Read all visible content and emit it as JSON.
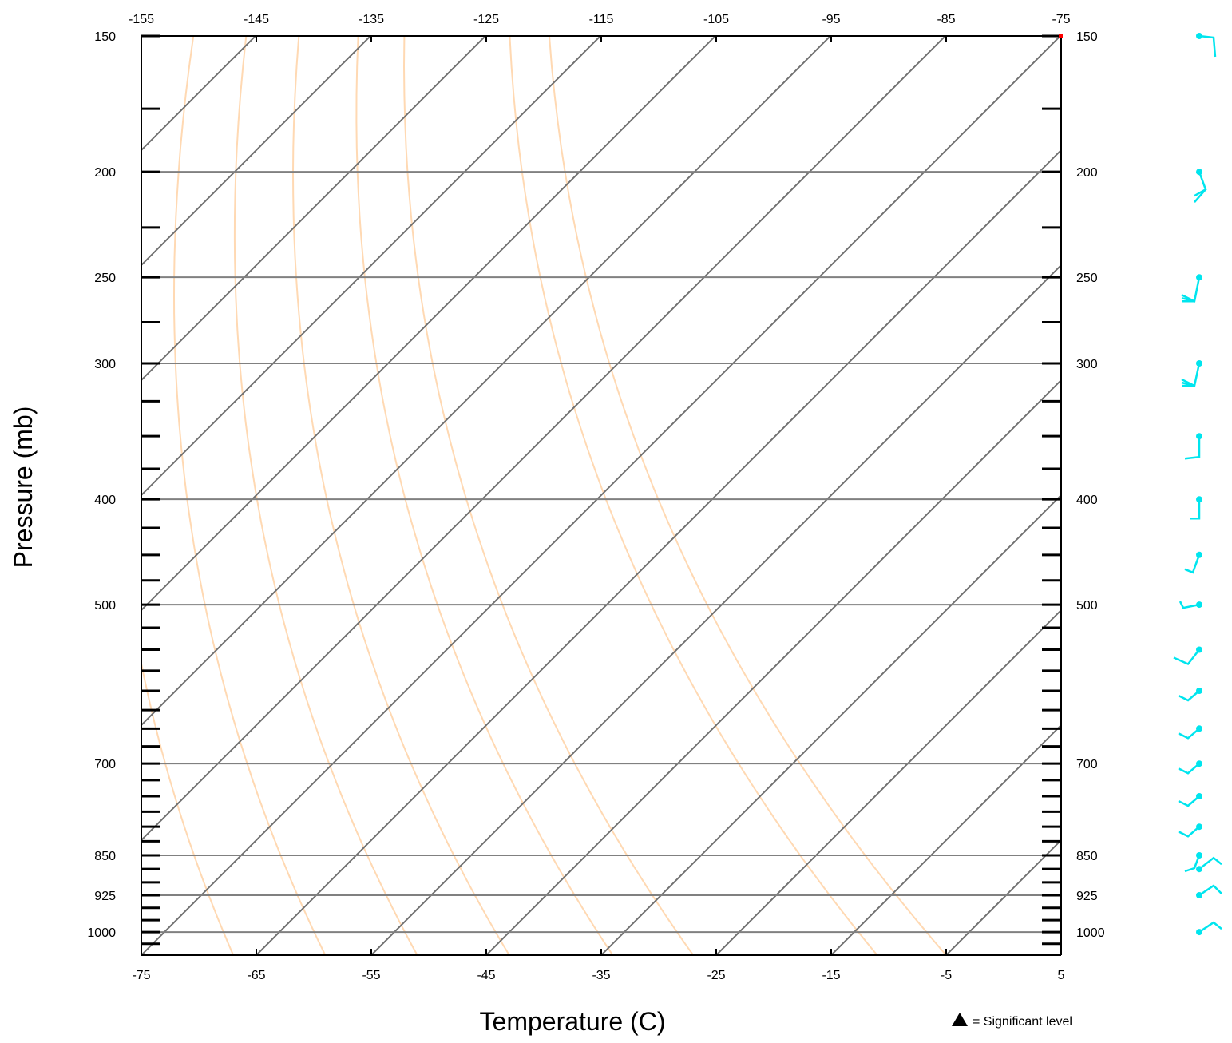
{
  "chart_data": {
    "type": "skew-t log-p diagram",
    "xlabel": "Temperature (C)",
    "ylabel": "Pressure (mb)",
    "bottom_ticks": [
      "-75",
      "-65",
      "-55",
      "-45",
      "-35",
      "-25",
      "-15",
      "-5",
      "5"
    ],
    "bottom_tick_values": [
      -75,
      -65,
      -55,
      -45,
      -35,
      -25,
      -15,
      -5,
      5
    ],
    "top_ticks": [
      "-155",
      "-145",
      "-135",
      "-125",
      "-115",
      "-105",
      "-95",
      "-85",
      "-75"
    ],
    "top_tick_values": [
      -155,
      -145,
      -135,
      -125,
      -115,
      -105,
      -95,
      -85,
      -75
    ],
    "pressure_labels": [
      "150",
      "200",
      "250",
      "300",
      "400",
      "500",
      "700",
      "850",
      "925",
      "1000"
    ],
    "pressure_levels": [
      150,
      200,
      250,
      300,
      400,
      500,
      700,
      850,
      925,
      1000
    ],
    "pressure_range": [
      150,
      1050
    ],
    "temperature_range_bottom": [
      -75,
      5
    ],
    "isotherms_c": [
      -155,
      -145,
      -135,
      -125,
      -115,
      -105,
      -95,
      -85,
      -75,
      -65,
      -55,
      -45,
      -35,
      -25,
      -15,
      -5,
      5
    ],
    "dry_adiabats_c": [
      -75,
      -67,
      -59,
      -51,
      -43,
      -34,
      -27,
      -11,
      -5
    ],
    "minor_pressure_ticks": [
      175,
      225,
      275,
      325,
      350,
      375,
      425,
      450,
      475,
      525,
      550,
      575,
      600,
      625,
      650,
      675,
      725,
      750,
      775,
      800,
      825,
      875,
      900,
      950,
      975,
      1025
    ],
    "wind_barb_levels": [
      150,
      200,
      250,
      300,
      350,
      400,
      450,
      500,
      550,
      600,
      650,
      700,
      750,
      800,
      850,
      875,
      925,
      1000
    ],
    "legend": {
      "symbol": "triangle",
      "text": "= Significant level"
    },
    "colors": {
      "isobar": "#808080",
      "isotherm": "#707070",
      "dry_adiabat": "#ffd9b3",
      "frame": "#000000",
      "wind_barb": "#00e5ee",
      "corner_marker": "#ff0000"
    }
  }
}
